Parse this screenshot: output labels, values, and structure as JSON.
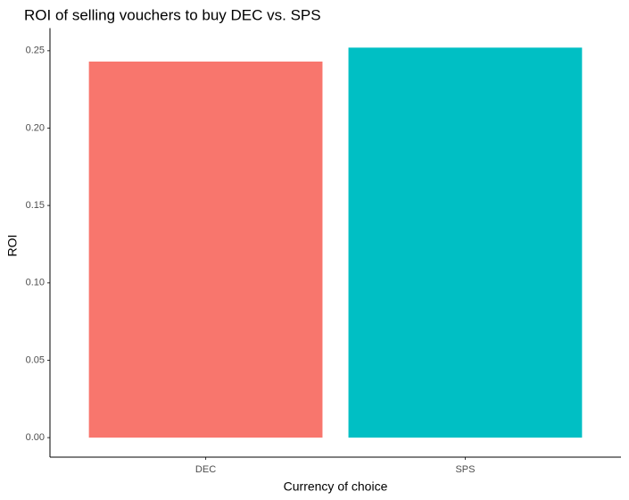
{
  "chart_data": {
    "type": "bar",
    "title": "ROI of selling vouchers to buy DEC vs. SPS",
    "x_label": "Currency of choice",
    "y_label": "ROI",
    "categories": [
      "DEC",
      "SPS"
    ],
    "values": [
      0.243,
      0.252
    ],
    "colors": [
      "#F8766D",
      "#00BFC4"
    ],
    "ylim": [
      -0.0126,
      0.2646
    ],
    "yticks": [
      {
        "value": 0,
        "label": "0.00"
      },
      {
        "value": 0.05,
        "label": "0.05"
      },
      {
        "value": 0.1,
        "label": "0.10"
      },
      {
        "value": 0.15,
        "label": "0.15"
      },
      {
        "value": 0.2,
        "label": "0.20"
      },
      {
        "value": 0.25,
        "label": "0.25"
      }
    ],
    "grid": false
  }
}
